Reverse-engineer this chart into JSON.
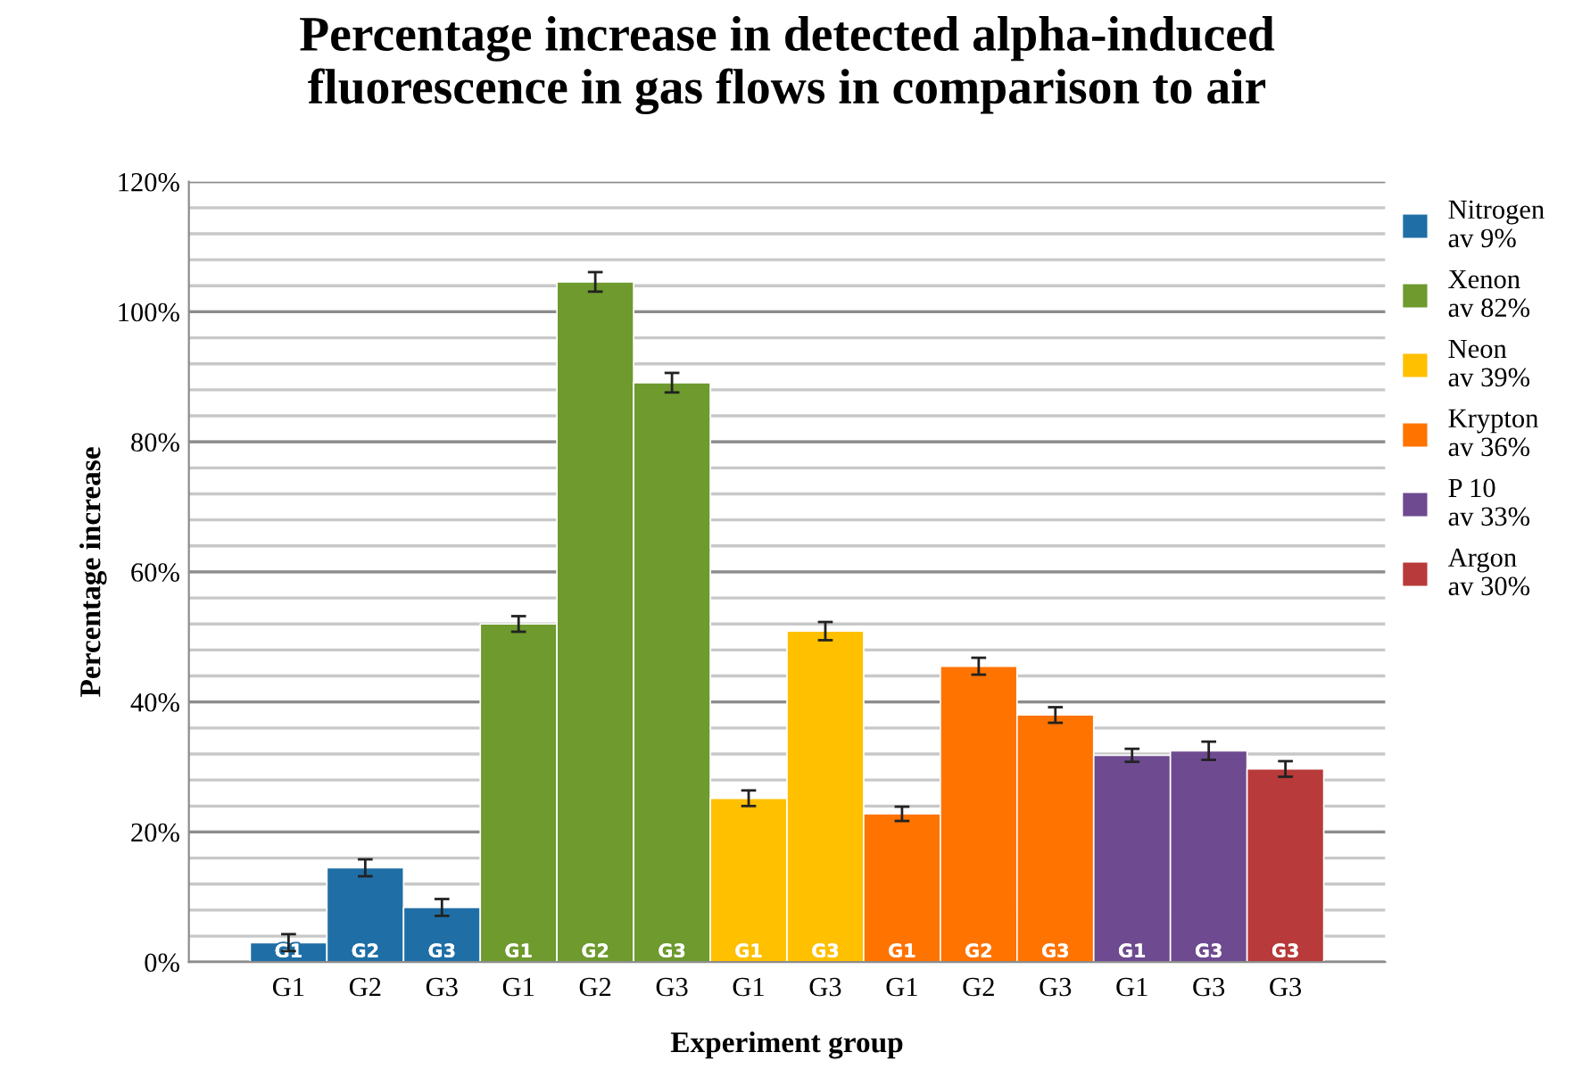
{
  "chart_data": {
    "type": "bar",
    "title": "Percentage increase in detected alpha-induced\nfluorescence in gas flows in comparison to air",
    "xlabel": "Experiment group",
    "ylabel": "Percentage increase",
    "categories": [
      "G1",
      "G2",
      "G3",
      "G1",
      "G2",
      "G3",
      "G1",
      "G3",
      "G1",
      "G2",
      "G3",
      "G1",
      "G3",
      "G3"
    ],
    "series": [
      {
        "name": "Nitrogen\nav 9%",
        "color": "#1f6fa6",
        "values": [
          3,
          14.5,
          8.4,
          null,
          null,
          null,
          null,
          null,
          null,
          null,
          null,
          null,
          null,
          null
        ],
        "errors": [
          1.3,
          1.3,
          1.3,
          null,
          null,
          null,
          null,
          null,
          null,
          null,
          null,
          null,
          null,
          null
        ]
      },
      {
        "name": "Xenon\nav 82%",
        "color": "#6e9a2e",
        "values": [
          null,
          null,
          null,
          52,
          104.6,
          89.1,
          null,
          null,
          null,
          null,
          null,
          null,
          null,
          null
        ],
        "errors": [
          null,
          null,
          null,
          1.2,
          1.5,
          1.5,
          null,
          null,
          null,
          null,
          null,
          null,
          null,
          null
        ]
      },
      {
        "name": "Neon\nav 39%",
        "color": "#ffc000",
        "values": [
          null,
          null,
          null,
          null,
          null,
          null,
          25.2,
          50.9,
          null,
          null,
          null,
          null,
          null,
          null
        ],
        "errors": [
          null,
          null,
          null,
          null,
          null,
          null,
          1.2,
          1.4,
          null,
          null,
          null,
          null,
          null,
          null
        ]
      },
      {
        "name": "Krypton\nav 36%",
        "color": "#ff7300",
        "values": [
          null,
          null,
          null,
          null,
          null,
          null,
          null,
          null,
          22.8,
          45.5,
          38,
          null,
          null,
          null
        ],
        "errors": [
          null,
          null,
          null,
          null,
          null,
          null,
          null,
          null,
          1.1,
          1.3,
          1.2,
          null,
          null,
          null
        ]
      },
      {
        "name": "P 10\nav 33%",
        "color": "#6e4a90",
        "values": [
          null,
          null,
          null,
          null,
          null,
          null,
          null,
          null,
          null,
          null,
          null,
          31.8,
          32.5,
          null
        ],
        "errors": [
          null,
          null,
          null,
          null,
          null,
          null,
          null,
          null,
          null,
          null,
          null,
          1,
          1.4,
          null
        ]
      },
      {
        "name": "Argon\nav 30%",
        "color": "#b83a3a",
        "values": [
          null,
          null,
          null,
          null,
          null,
          null,
          null,
          null,
          null,
          null,
          null,
          null,
          null,
          29.7
        ],
        "errors": [
          null,
          null,
          null,
          null,
          null,
          null,
          null,
          null,
          null,
          null,
          null,
          null,
          null,
          1.2
        ]
      }
    ],
    "annotations": [
      "G1",
      "G2",
      "G3",
      "G1",
      "G2",
      "G3",
      "G1",
      "G3",
      "G1",
      "G2",
      "G3",
      "G1",
      "G3",
      "G3"
    ],
    "ylim": [
      0,
      120
    ],
    "yticks": [
      {
        "value": 0,
        "label": "0%"
      },
      {
        "value": 4,
        "label": null
      },
      {
        "value": 8,
        "label": null
      },
      {
        "value": 12,
        "label": null
      },
      {
        "value": 16,
        "label": null
      },
      {
        "value": 20,
        "label": "20%"
      },
      {
        "value": 24,
        "label": null
      },
      {
        "value": 28,
        "label": null
      },
      {
        "value": 32,
        "label": null
      },
      {
        "value": 36,
        "label": null
      },
      {
        "value": 40,
        "label": "40%"
      },
      {
        "value": 44,
        "label": null
      },
      {
        "value": 48,
        "label": null
      },
      {
        "value": 52,
        "label": null
      },
      {
        "value": 56,
        "label": null
      },
      {
        "value": 60,
        "label": "60%"
      },
      {
        "value": 64,
        "label": null
      },
      {
        "value": 68,
        "label": null
      },
      {
        "value": 72,
        "label": null
      },
      {
        "value": 76,
        "label": null
      },
      {
        "value": 80,
        "label": "80%"
      },
      {
        "value": 84,
        "label": null
      },
      {
        "value": 88,
        "label": null
      },
      {
        "value": 92,
        "label": null
      },
      {
        "value": 96,
        "label": null
      },
      {
        "value": 100,
        "label": "100%"
      },
      {
        "value": 104,
        "label": null
      },
      {
        "value": 108,
        "label": null
      },
      {
        "value": 112,
        "label": null
      },
      {
        "value": 116,
        "label": null
      },
      {
        "value": 120,
        "label": "120%"
      }
    ],
    "grid": "y",
    "legend": "right"
  }
}
